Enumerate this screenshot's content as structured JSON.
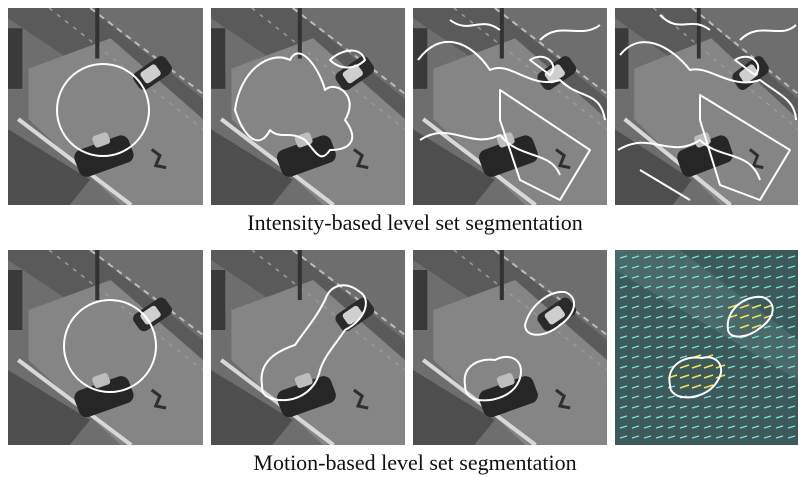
{
  "rows": [
    {
      "caption": "Intensity-based level set segmentation"
    },
    {
      "caption": "Motion-based level set segmentation"
    }
  ]
}
